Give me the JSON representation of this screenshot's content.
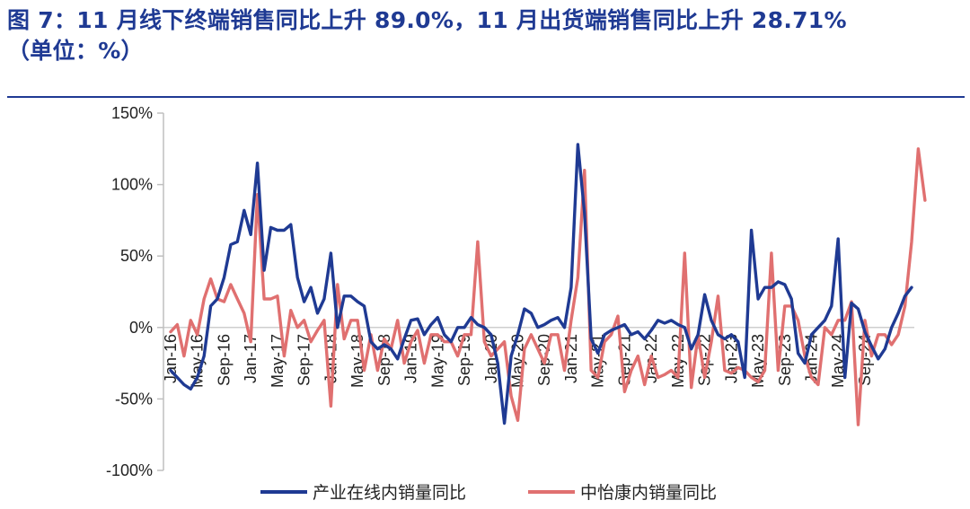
{
  "header": {
    "title_line1": "图 7：11 月线下终端销售同比上升 89.0%，11 月出货端销售同比上升 28.71%",
    "title_line2": "（单位：%）"
  },
  "chart_data": {
    "type": "line",
    "y_tick_labels": [
      "150%",
      "100%",
      "50%",
      "0%",
      "-50%",
      "-100%"
    ],
    "ylim": [
      -100,
      150
    ],
    "x_tick_labels": [
      "Jan-16",
      "May-16",
      "Sep-16",
      "Jan-17",
      "May-17",
      "Sep-17",
      "Jan-18",
      "May-18",
      "Sep-18",
      "Jan-19",
      "May-19",
      "Sep-19",
      "Jan-20",
      "May-20",
      "Sep-20",
      "Jan-21",
      "May-21",
      "Sep-21",
      "Jan-22",
      "May-22",
      "Sep-22",
      "Jan-23",
      "May-23",
      "Sep-23",
      "Jan-24",
      "May-24",
      "Sep-24"
    ],
    "legend_position": "bottom",
    "series": [
      {
        "name": "产业在线内销量同比",
        "color": "#1f3a93",
        "values": [
          -30,
          -35,
          -40,
          -43,
          -35,
          -20,
          15,
          20,
          35,
          58,
          60,
          82,
          65,
          115,
          40,
          70,
          68,
          68,
          72,
          35,
          18,
          28,
          10,
          20,
          52,
          0,
          22,
          22,
          18,
          15,
          -10,
          -15,
          -12,
          -15,
          -22,
          -8,
          5,
          6,
          -5,
          2,
          7,
          -5,
          -10,
          0,
          0,
          7,
          2,
          0,
          -5,
          -25,
          -67,
          -20,
          -5,
          13,
          10,
          0,
          2,
          5,
          7,
          0,
          28,
          128,
          80,
          -8,
          -18,
          -5,
          -2,
          0,
          2,
          -5,
          -3,
          -8,
          -2,
          5,
          3,
          5,
          2,
          0,
          -15,
          -5,
          23,
          5,
          -5,
          -8,
          -5,
          -10,
          -35,
          68,
          20,
          28,
          28,
          32,
          30,
          20,
          -18,
          -25,
          -5,
          0,
          5,
          15,
          62,
          -35,
          17,
          13,
          -3,
          -13,
          -22,
          -15,
          0,
          10,
          22,
          28
        ]
      },
      {
        "name": "中怡康内销量同比",
        "color": "#e07070",
        "values": [
          -3,
          2,
          -20,
          5,
          -5,
          20,
          34,
          20,
          18,
          30,
          20,
          10,
          -10,
          93,
          20,
          20,
          22,
          -20,
          12,
          0,
          5,
          -10,
          -2,
          5,
          -55,
          30,
          -8,
          5,
          5,
          -30,
          -5,
          -30,
          -8,
          -15,
          5,
          -25,
          -10,
          -2,
          -25,
          -5,
          -5,
          -10,
          -10,
          -20,
          -5,
          -5,
          60,
          -10,
          -20,
          -15,
          -10,
          -48,
          -65,
          -15,
          -5,
          -15,
          -25,
          -5,
          -5,
          -30,
          5,
          35,
          110,
          -30,
          -35,
          -10,
          -5,
          8,
          -45,
          -30,
          -20,
          -40,
          -20,
          -35,
          -33,
          -30,
          -35,
          52,
          -42,
          -5,
          -35,
          -10,
          22,
          -30,
          -32,
          -28,
          -30,
          -35,
          -38,
          -30,
          52,
          -30,
          15,
          15,
          5,
          -20,
          -35,
          -40,
          0,
          -5,
          5,
          5,
          18,
          -68,
          5,
          -20,
          -5,
          -5,
          -12,
          -5,
          15,
          60,
          125,
          89
        ]
      }
    ]
  }
}
